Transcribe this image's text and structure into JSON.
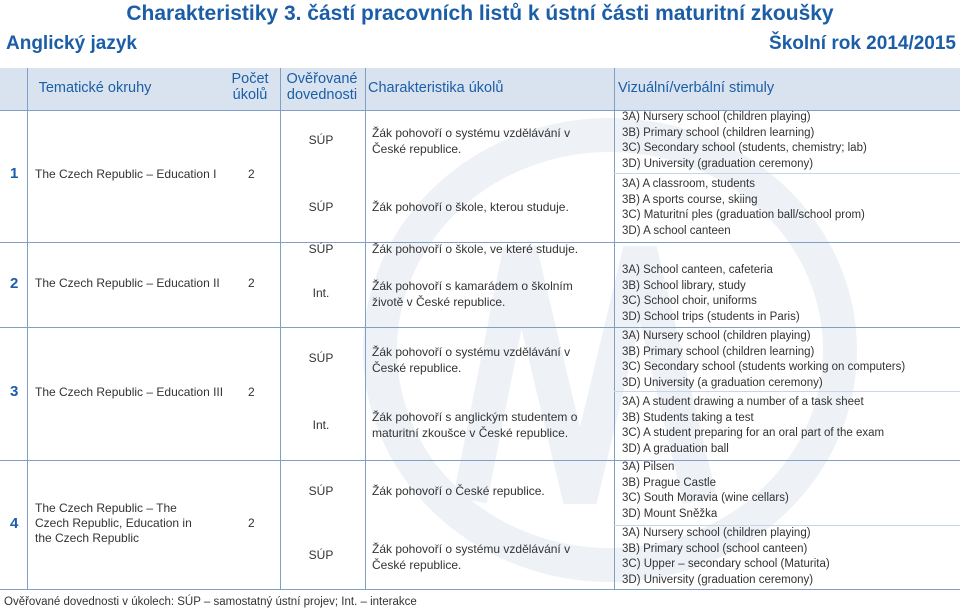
{
  "title": "Charakteristiky 3. částí pracovních listů k ústní části maturitní zkoušky",
  "subject": "Anglický jazyk",
  "school_year": "Školní rok 2014/2015",
  "headers": {
    "topics": "Tematické okruhy",
    "count_line1": "Počet",
    "count_line2": "úkolů",
    "skills_line1": "Ověřované",
    "skills_line2": "dovednosti",
    "tasks": "Charakteristika úkolů",
    "stimuli": "Vizuální/verbální stimuly"
  },
  "rows": [
    {
      "num": "1",
      "topic": "The Czech Republic – Education I",
      "count": "2",
      "skills": [
        "SÚP",
        "SÚP"
      ],
      "tasks": [
        "Žák pohovoří o systému vzdělávání v České republice.",
        "Žák pohovoří o škole, kterou studuje."
      ],
      "stimuli": [
        [
          "3A) Nursery school (children playing)",
          "3B) Primary school (children learning)",
          "3C) Secondary school (students, chemistry; lab)",
          "3D) University (graduation ceremony)"
        ],
        [
          "3A) A classroom, students",
          "3B) A sports course, skiing",
          "3C) Maturitní ples (graduation ball/school prom)",
          "3D) A school canteen"
        ]
      ]
    },
    {
      "num": "2",
      "topic": "The Czech Republic – Education II",
      "count": "2",
      "skills": [
        "SÚP",
        "Int."
      ],
      "tasks": [
        "Žák pohovoří o škole, ve které studuje.",
        "Žák pohovoří s kamarádem o školním životě v České republice."
      ],
      "stimuli": [
        [
          "3A) School canteen, cafeteria",
          "3B) School library, study",
          "3C) School choir, uniforms",
          "3D) School trips (students in Paris)"
        ]
      ]
    },
    {
      "num": "3",
      "topic": "The Czech Republic – Education III",
      "count": "2",
      "skills": [
        "SÚP",
        "Int."
      ],
      "tasks": [
        "Žák pohovoří o systému vzdělávání v České republice.",
        "Žák pohovoří s anglickým studentem o maturitní zkoušce v České republice."
      ],
      "stimuli": [
        [
          "3A) Nursery school (children playing)",
          "3B) Primary school (children learning)",
          "3C) Secondary school (students working on computers)",
          "3D) University (a graduation ceremony)"
        ],
        [
          "3A) A student drawing a number of a task sheet",
          "3B) Students taking a test",
          "3C) A student preparing for an oral part of the exam",
          "3D) A graduation ball"
        ]
      ]
    },
    {
      "num": "4",
      "topic": "The Czech Republic – The Czech Republic, Education in the Czech Republic",
      "count": "2",
      "skills": [
        "SÚP",
        "SÚP"
      ],
      "tasks": [
        "Žák pohovoří o České republice.",
        "Žák pohovoří o systému vzdělávání v České republice."
      ],
      "stimuli": [
        [
          "3A) Pilsen",
          "3B) Prague Castle",
          "3C) South Moravia (wine cellars)",
          "3D) Mount Sněžka"
        ],
        [
          "3A) Nursery school (children playing)",
          "3B) Primary school (school canteen)",
          "3C) Upper – secondary school (Maturita)",
          "3D) University (graduation ceremony)"
        ]
      ]
    }
  ],
  "footer": "Ověřované dovednosti v úkolech: SÚP – samostatný ústní projev; Int. – interakce",
  "colors": {
    "accent": "#1b5ea7",
    "header_bg": "#d9e3ef",
    "grid": "#7f9fc5"
  }
}
